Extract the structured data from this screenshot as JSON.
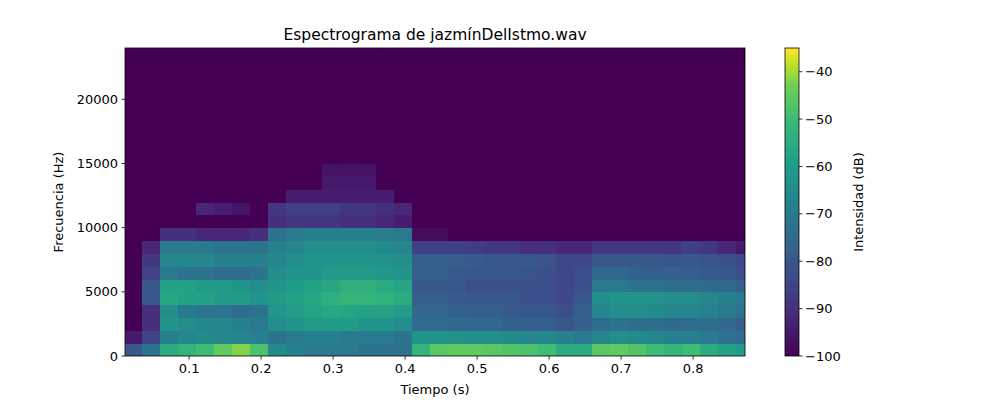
{
  "chart_data": {
    "type": "heatmap",
    "title": "Espectrograma de jazmínDelIstmo.wav",
    "x_label": "Tiempo (s)",
    "y_label": "Frecuencia (Hz)",
    "colorbar_label": "Intensidad (dB)",
    "xlim": [
      0.011,
      0.872
    ],
    "ylim": [
      0,
      24000
    ],
    "xticks": [
      0.1,
      0.2,
      0.3,
      0.4,
      0.5,
      0.6,
      0.7,
      0.8
    ],
    "yticks": [
      0,
      5000,
      10000,
      15000,
      20000
    ],
    "colorbar_range": [
      -100,
      -35
    ],
    "colorbar_ticks": [
      -100,
      -90,
      -80,
      -70,
      -60,
      -50,
      -40
    ],
    "x_bins": [
      0.01,
      0.035,
      0.06,
      0.085,
      0.11,
      0.135,
      0.16,
      0.185,
      0.21,
      0.235,
      0.26,
      0.285,
      0.31,
      0.335,
      0.36,
      0.385,
      0.41,
      0.435,
      0.46,
      0.485,
      0.51,
      0.535,
      0.56,
      0.585,
      0.61,
      0.635,
      0.66,
      0.685,
      0.71,
      0.735,
      0.76,
      0.785,
      0.81,
      0.835,
      0.86,
      0.885
    ],
    "y_bins": [
      0,
      1000,
      2000,
      3000,
      4000,
      5000,
      6000,
      7000,
      8000,
      9000,
      10000,
      11000,
      12000,
      13000,
      14000,
      15000,
      16000,
      17000,
      18000,
      19000,
      20000,
      21000,
      22000,
      23000,
      24000
    ],
    "values": [
      [
        -80,
        -72,
        -55,
        -52,
        -50,
        -45,
        -42,
        -48,
        -65,
        -68,
        -70,
        -70,
        -70,
        -72,
        -72,
        -72,
        -52,
        -46,
        -45,
        -45,
        -46,
        -47,
        -48,
        -50,
        -55,
        -55,
        -46,
        -45,
        -47,
        -50,
        -52,
        -50,
        -55,
        -58,
        -60
      ],
      [
        -95,
        -85,
        -68,
        -66,
        -65,
        -66,
        -67,
        -68,
        -72,
        -70,
        -68,
        -68,
        -70,
        -70,
        -70,
        -72,
        -62,
        -62,
        -63,
        -64,
        -64,
        -65,
        -66,
        -66,
        -68,
        -70,
        -66,
        -64,
        -65,
        -66,
        -68,
        -68,
        -70,
        -72,
        -74
      ],
      [
        -100,
        -90,
        -62,
        -64,
        -66,
        -66,
        -68,
        -70,
        -64,
        -62,
        -60,
        -60,
        -60,
        -62,
        -62,
        -64,
        -74,
        -74,
        -75,
        -76,
        -76,
        -77,
        -78,
        -78,
        -80,
        -78,
        -74,
        -72,
        -73,
        -74,
        -75,
        -74,
        -74,
        -76,
        -78
      ],
      [
        -100,
        -90,
        -64,
        -70,
        -72,
        -72,
        -74,
        -72,
        -62,
        -60,
        -58,
        -56,
        -57,
        -58,
        -58,
        -60,
        -76,
        -76,
        -77,
        -78,
        -78,
        -79,
        -80,
        -80,
        -82,
        -78,
        -66,
        -64,
        -64,
        -65,
        -66,
        -66,
        -68,
        -70,
        -72
      ],
      [
        -100,
        -80,
        -56,
        -58,
        -58,
        -60,
        -60,
        -62,
        -60,
        -58,
        -56,
        -54,
        -52,
        -52,
        -53,
        -55,
        -78,
        -78,
        -79,
        -80,
        -80,
        -80,
        -82,
        -82,
        -84,
        -80,
        -64,
        -62,
        -62,
        -63,
        -64,
        -64,
        -66,
        -68,
        -70
      ],
      [
        -100,
        -80,
        -58,
        -58,
        -60,
        -60,
        -62,
        -64,
        -62,
        -60,
        -58,
        -56,
        -54,
        -54,
        -55,
        -57,
        -80,
        -80,
        -80,
        -82,
        -82,
        -82,
        -82,
        -82,
        -84,
        -82,
        -70,
        -70,
        -72,
        -72,
        -73,
        -74,
        -75,
        -76,
        -78
      ],
      [
        -100,
        -85,
        -70,
        -72,
        -72,
        -74,
        -74,
        -72,
        -64,
        -62,
        -62,
        -60,
        -60,
        -60,
        -61,
        -62,
        -78,
        -78,
        -79,
        -80,
        -80,
        -80,
        -81,
        -82,
        -84,
        -82,
        -76,
        -76,
        -77,
        -78,
        -78,
        -78,
        -79,
        -80,
        -82
      ],
      [
        -100,
        -88,
        -66,
        -66,
        -66,
        -68,
        -68,
        -68,
        -66,
        -64,
        -62,
        -62,
        -62,
        -62,
        -63,
        -64,
        -78,
        -78,
        -78,
        -79,
        -80,
        -80,
        -80,
        -81,
        -84,
        -84,
        -80,
        -80,
        -80,
        -80,
        -81,
        -80,
        -81,
        -82,
        -84
      ],
      [
        -100,
        -92,
        -70,
        -70,
        -70,
        -72,
        -72,
        -72,
        -68,
        -66,
        -64,
        -64,
        -64,
        -64,
        -65,
        -66,
        -86,
        -86,
        -86,
        -87,
        -88,
        -88,
        -90,
        -90,
        -92,
        -92,
        -88,
        -88,
        -88,
        -88,
        -88,
        -86,
        -88,
        -92,
        -95
      ],
      [
        -100,
        -100,
        -90,
        -90,
        -92,
        -92,
        -92,
        -90,
        -72,
        -70,
        -68,
        -68,
        -68,
        -68,
        -69,
        -70,
        -98,
        -98,
        -100,
        -100,
        -100,
        -100,
        -100,
        -100,
        -100,
        -100,
        -100,
        -100,
        -100,
        -100,
        -100,
        -100,
        -100,
        -100,
        -100
      ],
      [
        -100,
        -100,
        -100,
        -100,
        -100,
        -100,
        -100,
        -100,
        -90,
        -88,
        -88,
        -88,
        -90,
        -90,
        -92,
        -94,
        -100,
        -100,
        -100,
        -100,
        -100,
        -100,
        -100,
        -100,
        -100,
        -100,
        -100,
        -100,
        -100,
        -100,
        -100,
        -100,
        -100,
        -100,
        -100
      ],
      [
        -100,
        -100,
        -100,
        -100,
        -92,
        -94,
        -96,
        -100,
        -88,
        -86,
        -86,
        -86,
        -88,
        -88,
        -90,
        -92,
        -100,
        -100,
        -100,
        -100,
        -100,
        -100,
        -100,
        -100,
        -100,
        -100,
        -100,
        -100,
        -100,
        -100,
        -100,
        -100,
        -100,
        -100,
        -100
      ],
      [
        -100,
        -100,
        -100,
        -100,
        -100,
        -100,
        -100,
        -100,
        -100,
        -94,
        -94,
        -94,
        -94,
        -94,
        -94,
        -100,
        -100,
        -100,
        -100,
        -100,
        -100,
        -100,
        -100,
        -100,
        -100,
        -100,
        -100,
        -100,
        -100,
        -100,
        -100,
        -100,
        -100,
        -100,
        -100
      ],
      [
        -100,
        -100,
        -100,
        -100,
        -100,
        -100,
        -100,
        -100,
        -100,
        -100,
        -100,
        -95,
        -95,
        -95,
        -100,
        -100,
        -100,
        -100,
        -100,
        -100,
        -100,
        -100,
        -100,
        -100,
        -100,
        -100,
        -100,
        -100,
        -100,
        -100,
        -100,
        -100,
        -100,
        -100,
        -100
      ],
      [
        -100,
        -100,
        -100,
        -100,
        -100,
        -100,
        -100,
        -100,
        -100,
        -100,
        -100,
        -96,
        -96,
        -96,
        -100,
        -100,
        -100,
        -100,
        -100,
        -100,
        -100,
        -100,
        -100,
        -100,
        -100,
        -100,
        -100,
        -100,
        -100,
        -100,
        -100,
        -100,
        -100,
        -100,
        -100
      ],
      [
        -100,
        -100,
        -100,
        -100,
        -100,
        -100,
        -100,
        -100,
        -100,
        -100,
        -100,
        -100,
        -100,
        -100,
        -100,
        -100,
        -100,
        -100,
        -100,
        -100,
        -100,
        -100,
        -100,
        -100,
        -100,
        -100,
        -100,
        -100,
        -100,
        -100,
        -100,
        -100,
        -100,
        -100,
        -100
      ],
      [
        -100,
        -100,
        -100,
        -100,
        -100,
        -100,
        -100,
        -100,
        -100,
        -100,
        -100,
        -100,
        -100,
        -100,
        -100,
        -100,
        -100,
        -100,
        -100,
        -100,
        -100,
        -100,
        -100,
        -100,
        -100,
        -100,
        -100,
        -100,
        -100,
        -100,
        -100,
        -100,
        -100,
        -100,
        -100
      ],
      [
        -100,
        -100,
        -100,
        -100,
        -100,
        -100,
        -100,
        -100,
        -100,
        -100,
        -100,
        -100,
        -100,
        -100,
        -100,
        -100,
        -100,
        -100,
        -100,
        -100,
        -100,
        -100,
        -100,
        -100,
        -100,
        -100,
        -100,
        -100,
        -100,
        -100,
        -100,
        -100,
        -100,
        -100,
        -100
      ],
      [
        -100,
        -100,
        -100,
        -100,
        -100,
        -100,
        -100,
        -100,
        -100,
        -100,
        -100,
        -100,
        -100,
        -100,
        -100,
        -100,
        -100,
        -100,
        -100,
        -100,
        -100,
        -100,
        -100,
        -100,
        -100,
        -100,
        -100,
        -100,
        -100,
        -100,
        -100,
        -100,
        -100,
        -100,
        -100
      ],
      [
        -100,
        -100,
        -100,
        -100,
        -100,
        -100,
        -100,
        -100,
        -100,
        -100,
        -100,
        -100,
        -100,
        -100,
        -100,
        -100,
        -100,
        -100,
        -100,
        -100,
        -100,
        -100,
        -100,
        -100,
        -100,
        -100,
        -100,
        -100,
        -100,
        -100,
        -100,
        -100,
        -100,
        -100,
        -100
      ],
      [
        -100,
        -100,
        -100,
        -100,
        -100,
        -100,
        -100,
        -100,
        -100,
        -100,
        -100,
        -100,
        -100,
        -100,
        -100,
        -100,
        -100,
        -100,
        -100,
        -100,
        -100,
        -100,
        -100,
        -100,
        -100,
        -100,
        -100,
        -100,
        -100,
        -100,
        -100,
        -100,
        -100,
        -100,
        -100
      ],
      [
        -100,
        -100,
        -100,
        -100,
        -100,
        -100,
        -100,
        -100,
        -100,
        -100,
        -100,
        -100,
        -100,
        -100,
        -100,
        -100,
        -100,
        -100,
        -100,
        -100,
        -100,
        -100,
        -100,
        -100,
        -100,
        -100,
        -100,
        -100,
        -100,
        -100,
        -100,
        -100,
        -100,
        -100,
        -100
      ],
      [
        -100,
        -100,
        -100,
        -100,
        -100,
        -100,
        -100,
        -100,
        -100,
        -100,
        -100,
        -100,
        -100,
        -100,
        -100,
        -100,
        -100,
        -100,
        -100,
        -100,
        -100,
        -100,
        -100,
        -100,
        -100,
        -100,
        -100,
        -100,
        -100,
        -100,
        -100,
        -100,
        -100,
        -100,
        -100
      ],
      [
        -100,
        -100,
        -100,
        -100,
        -100,
        -100,
        -100,
        -100,
        -100,
        -100,
        -100,
        -100,
        -100,
        -100,
        -100,
        -100,
        -100,
        -100,
        -100,
        -100,
        -100,
        -100,
        -100,
        -100,
        -100,
        -100,
        -100,
        -100,
        -100,
        -100,
        -100,
        -100,
        -100,
        -100,
        -100
      ]
    ]
  }
}
